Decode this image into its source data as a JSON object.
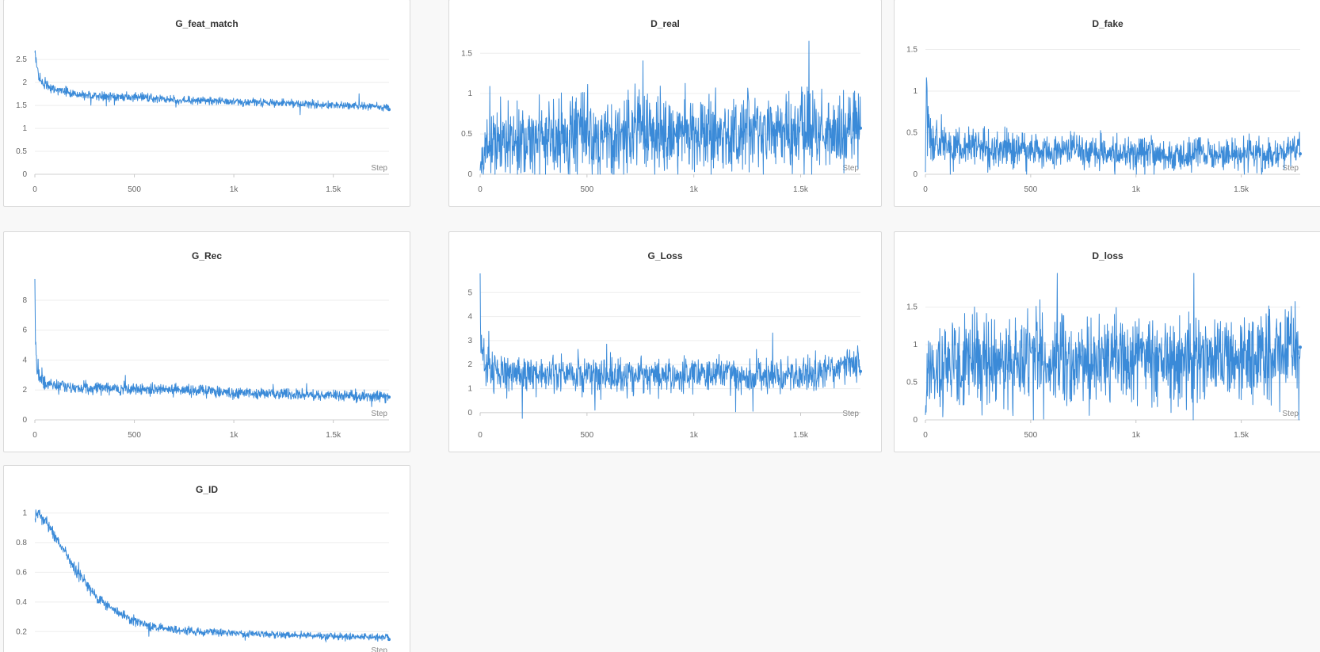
{
  "accent_color": "#3a8ad8",
  "chart_data": [
    {
      "type": "line",
      "title": "G_feat_match",
      "xlabel": "Step",
      "ylabel": "",
      "xlim": [
        0,
        1780
      ],
      "ylim": [
        0,
        2.9
      ],
      "xticks": [
        0,
        500,
        1000,
        1500
      ],
      "xtick_labels": [
        "0",
        "500",
        "1k",
        "1.5k"
      ],
      "yticks": [
        0,
        0.5,
        1,
        1.5,
        2,
        2.5
      ],
      "ytick_labels": [
        "0",
        "0.5",
        "1",
        "1.5",
        "2",
        "2.5"
      ],
      "series": [
        {
          "color": "#3a8ad8",
          "x": [
            0,
            10,
            25,
            50,
            100,
            200,
            300,
            500,
            700,
            900,
            1100,
            1300,
            1500,
            1700,
            1780
          ],
          "y": [
            2.75,
            2.3,
            2.05,
            1.95,
            1.85,
            1.75,
            1.7,
            1.68,
            1.62,
            1.6,
            1.57,
            1.54,
            1.51,
            1.48,
            1.46
          ],
          "noise": [
            0.1,
            0.08,
            0.07,
            0.06,
            0.06,
            0.06,
            0.06,
            0.06,
            0.05,
            0.05,
            0.05,
            0.05,
            0.05,
            0.05,
            0.05
          ]
        }
      ]
    },
    {
      "type": "line",
      "title": "D_real",
      "xlabel": "Step",
      "ylabel": "",
      "xlim": [
        0,
        1780
      ],
      "ylim": [
        0,
        1.65
      ],
      "xticks": [
        0,
        500,
        1000,
        1500
      ],
      "xtick_labels": [
        "0",
        "500",
        "1k",
        "1.5k"
      ],
      "yticks": [
        0,
        0.5,
        1,
        1.5
      ],
      "ytick_labels": [
        "0",
        "0.5",
        "1",
        "1.5"
      ],
      "series": [
        {
          "color": "#3a8ad8",
          "x": [
            0,
            15,
            60,
            200,
            500,
            800,
            1100,
            1400,
            1700,
            1780
          ],
          "y": [
            0.05,
            0.3,
            0.4,
            0.45,
            0.48,
            0.5,
            0.52,
            0.53,
            0.54,
            0.62
          ],
          "noise": [
            0.05,
            0.22,
            0.26,
            0.28,
            0.3,
            0.3,
            0.3,
            0.3,
            0.3,
            0.3
          ]
        }
      ]
    },
    {
      "type": "line",
      "title": "D_fake",
      "xlabel": "Step",
      "ylabel": "",
      "xlim": [
        0,
        1780
      ],
      "ylim": [
        0,
        1.6
      ],
      "xticks": [
        0,
        500,
        1000,
        1500
      ],
      "xtick_labels": [
        "0",
        "500",
        "1k",
        "1.5k"
      ],
      "yticks": [
        0,
        0.5,
        1,
        1.5
      ],
      "ytick_labels": [
        "0",
        "0.5",
        "1",
        "1.5"
      ],
      "series": [
        {
          "color": "#3a8ad8",
          "x": [
            0,
            5,
            20,
            100,
            300,
            500,
            800,
            1100,
            1400,
            1700,
            1780
          ],
          "y": [
            0.05,
            1.2,
            0.4,
            0.35,
            0.3,
            0.28,
            0.26,
            0.25,
            0.24,
            0.24,
            0.35
          ],
          "noise": [
            0.03,
            0.2,
            0.18,
            0.17,
            0.15,
            0.13,
            0.12,
            0.12,
            0.11,
            0.11,
            0.11
          ]
        }
      ]
    },
    {
      "type": "line",
      "title": "G_Rec",
      "xlabel": "Step",
      "ylabel": "",
      "xlim": [
        0,
        1780
      ],
      "ylim": [
        0,
        9.8
      ],
      "xticks": [
        0,
        500,
        1000,
        1500
      ],
      "xtick_labels": [
        "0",
        "500",
        "1k",
        "1.5k"
      ],
      "yticks": [
        0,
        2,
        4,
        6,
        8
      ],
      "ytick_labels": [
        "0",
        "2",
        "4",
        "6",
        "8"
      ],
      "series": [
        {
          "color": "#3a8ad8",
          "x": [
            0,
            3,
            10,
            25,
            60,
            150,
            400,
            700,
            1000,
            1300,
            1600,
            1780
          ],
          "y": [
            9.4,
            5.5,
            3.6,
            2.8,
            2.4,
            2.2,
            2.1,
            2.0,
            1.8,
            1.7,
            1.6,
            1.55
          ],
          "noise": [
            0.3,
            0.4,
            0.4,
            0.3,
            0.25,
            0.25,
            0.25,
            0.25,
            0.22,
            0.22,
            0.22,
            0.22
          ]
        }
      ]
    },
    {
      "type": "line",
      "title": "G_Loss",
      "xlabel": "Step",
      "ylabel": "",
      "xlim": [
        0,
        1780
      ],
      "ylim": [
        -0.3,
        5.8
      ],
      "xticks": [
        0,
        500,
        1000,
        1500
      ],
      "xtick_labels": [
        "0",
        "500",
        "1k",
        "1.5k"
      ],
      "yticks": [
        0,
        1,
        2,
        3,
        4,
        5
      ],
      "ytick_labels": [
        "0",
        "1",
        "2",
        "3",
        "4",
        "5"
      ],
      "series": [
        {
          "color": "#3a8ad8",
          "x": [
            0,
            3,
            10,
            30,
            80,
            300,
            600,
            900,
            1200,
            1500,
            1780
          ],
          "y": [
            5.5,
            3.4,
            2.5,
            1.8,
            1.7,
            1.6,
            1.6,
            1.55,
            1.55,
            1.5,
            2.1
          ],
          "noise": [
            0.3,
            0.5,
            0.5,
            0.55,
            0.5,
            0.45,
            0.45,
            0.45,
            0.42,
            0.42,
            0.42
          ]
        }
      ]
    },
    {
      "type": "line",
      "title": "D_loss",
      "xlabel": "Step",
      "ylabel": "",
      "xlim": [
        0,
        1780
      ],
      "ylim": [
        0,
        1.95
      ],
      "xticks": [
        0,
        500,
        1000,
        1500
      ],
      "xtick_labels": [
        "0",
        "500",
        "1k",
        "1.5k"
      ],
      "yticks": [
        0,
        0.5,
        1,
        1.5
      ],
      "ytick_labels": [
        "0",
        "0.5",
        "1",
        "1.5"
      ],
      "series": [
        {
          "color": "#3a8ad8",
          "x": [
            0,
            10,
            40,
            150,
            400,
            700,
            1000,
            1300,
            1600,
            1780
          ],
          "y": [
            0.05,
            0.6,
            0.7,
            0.75,
            0.78,
            0.8,
            0.82,
            0.83,
            0.83,
            1.0
          ],
          "noise": [
            0.05,
            0.3,
            0.33,
            0.35,
            0.35,
            0.35,
            0.35,
            0.35,
            0.35,
            0.35
          ]
        }
      ]
    },
    {
      "type": "line",
      "title": "G_ID",
      "xlabel": "Step",
      "ylabel": "",
      "xlim": [
        0,
        1780
      ],
      "ylim": [
        0.1,
        1.04
      ],
      "xticks": [],
      "xtick_labels": [],
      "yticks": [
        0.2,
        0.4,
        0.6,
        0.8,
        1
      ],
      "ytick_labels": [
        "0.2",
        "0.4",
        "0.6",
        "0.8",
        "1"
      ],
      "series": [
        {
          "color": "#3a8ad8",
          "x": [
            0,
            20,
            100,
            200,
            300,
            400,
            500,
            600,
            800,
            1000,
            1200,
            1500,
            1780
          ],
          "y": [
            0.97,
            1.0,
            0.85,
            0.62,
            0.45,
            0.34,
            0.27,
            0.23,
            0.2,
            0.19,
            0.18,
            0.17,
            0.16
          ],
          "noise": [
            0.02,
            0.025,
            0.025,
            0.025,
            0.022,
            0.02,
            0.02,
            0.018,
            0.016,
            0.015,
            0.015,
            0.014,
            0.014
          ]
        }
      ]
    }
  ]
}
